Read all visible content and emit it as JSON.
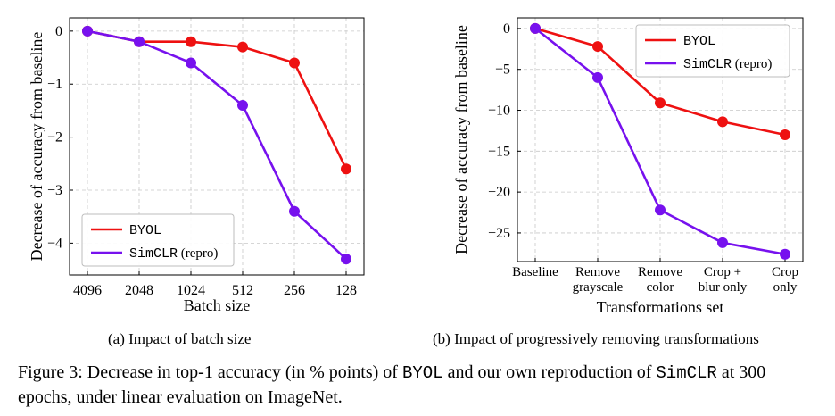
{
  "chart_data": [
    {
      "type": "line",
      "subcaption": "(a) Impact of batch size",
      "xlabel": "Batch size",
      "ylabel": "Decrease of accuracy from baseline",
      "categories": [
        "4096",
        "2048",
        "1024",
        "512",
        "256",
        "128"
      ],
      "yticks": [
        0,
        -1,
        -2,
        -3,
        -4
      ],
      "ytick_labels": [
        "0",
        "−1",
        "−2",
        "−3",
        "−4"
      ],
      "ylim": [
        -4.6,
        0.25
      ],
      "grid": true,
      "legend_position": "bottom-left",
      "series": [
        {
          "name": "BYOL",
          "color": "#ee1111",
          "values": [
            0,
            -0.2,
            -0.2,
            -0.3,
            -0.6,
            -2.6
          ]
        },
        {
          "name": "SimCLR (repro)",
          "color": "#7711ee",
          "values": [
            0,
            -0.2,
            -0.6,
            -1.4,
            -3.4,
            -4.3
          ]
        }
      ]
    },
    {
      "type": "line",
      "subcaption": "(b) Impact of progressively removing transformations",
      "xlabel": "Transformations set",
      "ylabel": "Decrease of accuracy from baseline",
      "categories": [
        {
          "line1": "Baseline",
          "line2": ""
        },
        {
          "line1": "Remove",
          "line2": "grayscale"
        },
        {
          "line1": "Remove",
          "line2": "color"
        },
        {
          "line1": "Crop +",
          "line2": "blur only"
        },
        {
          "line1": "Crop",
          "line2": "only"
        }
      ],
      "yticks": [
        0,
        -5,
        -10,
        -15,
        -20,
        -25
      ],
      "ytick_labels": [
        "0",
        "−5",
        "−10",
        "−15",
        "−20",
        "−25"
      ],
      "ylim": [
        -28.5,
        1.3
      ],
      "grid": true,
      "legend_position": "top-right",
      "series": [
        {
          "name": "BYOL",
          "color": "#ee1111",
          "values": [
            0,
            -2.2,
            -9.1,
            -11.4,
            -13.0
          ]
        },
        {
          "name": "SimCLR (repro)",
          "color": "#7711ee",
          "values": [
            0,
            -6.0,
            -22.2,
            -26.2,
            -27.6
          ]
        }
      ]
    }
  ],
  "caption": {
    "prefix": "Figure 3: Decrease in top-1 accuracy (in % points) of ",
    "byol": "BYOL",
    "middle": " and our own reproduction of ",
    "simclr": "SimCLR",
    "suffix": " at 300 epochs, under linear evaluation on ImageNet."
  }
}
